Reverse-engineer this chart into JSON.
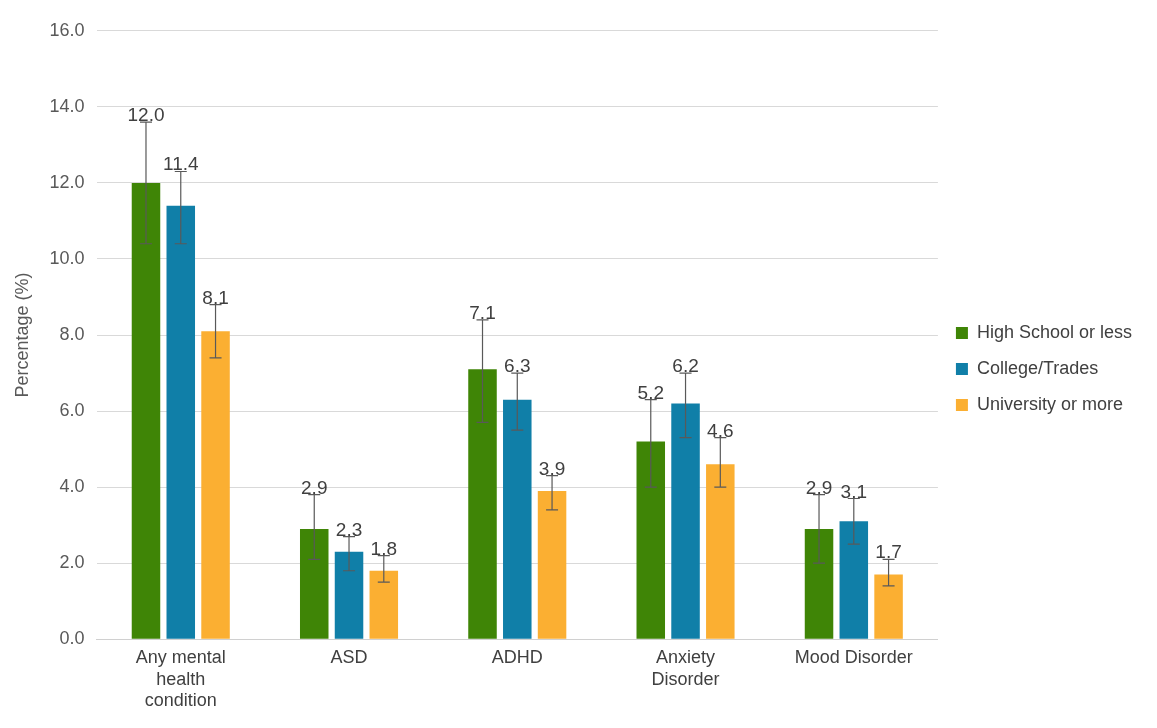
{
  "chart_data": {
    "type": "bar",
    "ylabel": "Percentage (%)",
    "categories": [
      "Any mental health condition",
      "ASD",
      "ADHD",
      "Anxiety Disorder",
      "Mood Disorder"
    ],
    "series": [
      {
        "name": "High School or less",
        "color": "#3f8506",
        "values": [
          12.0,
          2.9,
          7.1,
          5.2,
          2.9
        ],
        "errors": [
          [
            10.4,
            13.6
          ],
          [
            2.1,
            3.8
          ],
          [
            5.7,
            8.4
          ],
          [
            4.0,
            6.3
          ],
          [
            2.0,
            3.8
          ]
        ],
        "value_labels": [
          "12.0",
          "2.9",
          "7.1",
          "5.2",
          "2.9"
        ]
      },
      {
        "name": "College/Trades",
        "color": "#107fa8",
        "values": [
          11.4,
          2.3,
          6.3,
          6.2,
          3.1
        ],
        "errors": [
          [
            10.4,
            12.3
          ],
          [
            1.8,
            2.7
          ],
          [
            5.5,
            7.0
          ],
          [
            5.3,
            7.0
          ],
          [
            2.5,
            3.7
          ]
        ],
        "value_labels": [
          "11.4",
          "2.3",
          "6.3",
          "6.2",
          "3.1"
        ]
      },
      {
        "name": "University or more",
        "color": "#fbaf32",
        "values": [
          8.1,
          1.8,
          3.9,
          4.6,
          1.7
        ],
        "errors": [
          [
            7.4,
            8.8
          ],
          [
            1.5,
            2.2
          ],
          [
            3.4,
            4.3
          ],
          [
            4.0,
            5.3
          ],
          [
            1.4,
            2.1
          ]
        ],
        "value_labels": [
          "8.1",
          "1.8",
          "3.9",
          "4.6",
          "1.7"
        ]
      }
    ],
    "ylim": [
      0,
      16
    ],
    "yticks": [
      {
        "value": 0,
        "label": "0.0"
      },
      {
        "value": 2,
        "label": "2.0"
      },
      {
        "value": 4,
        "label": "4.0"
      },
      {
        "value": 6,
        "label": "6.0"
      },
      {
        "value": 8,
        "label": "8.0"
      },
      {
        "value": 10,
        "label": "10.0"
      },
      {
        "value": 12,
        "label": "12.0"
      },
      {
        "value": 14,
        "label": "14.0"
      },
      {
        "value": 16,
        "label": "16.0"
      }
    ],
    "grid": "y",
    "legend": "right"
  }
}
